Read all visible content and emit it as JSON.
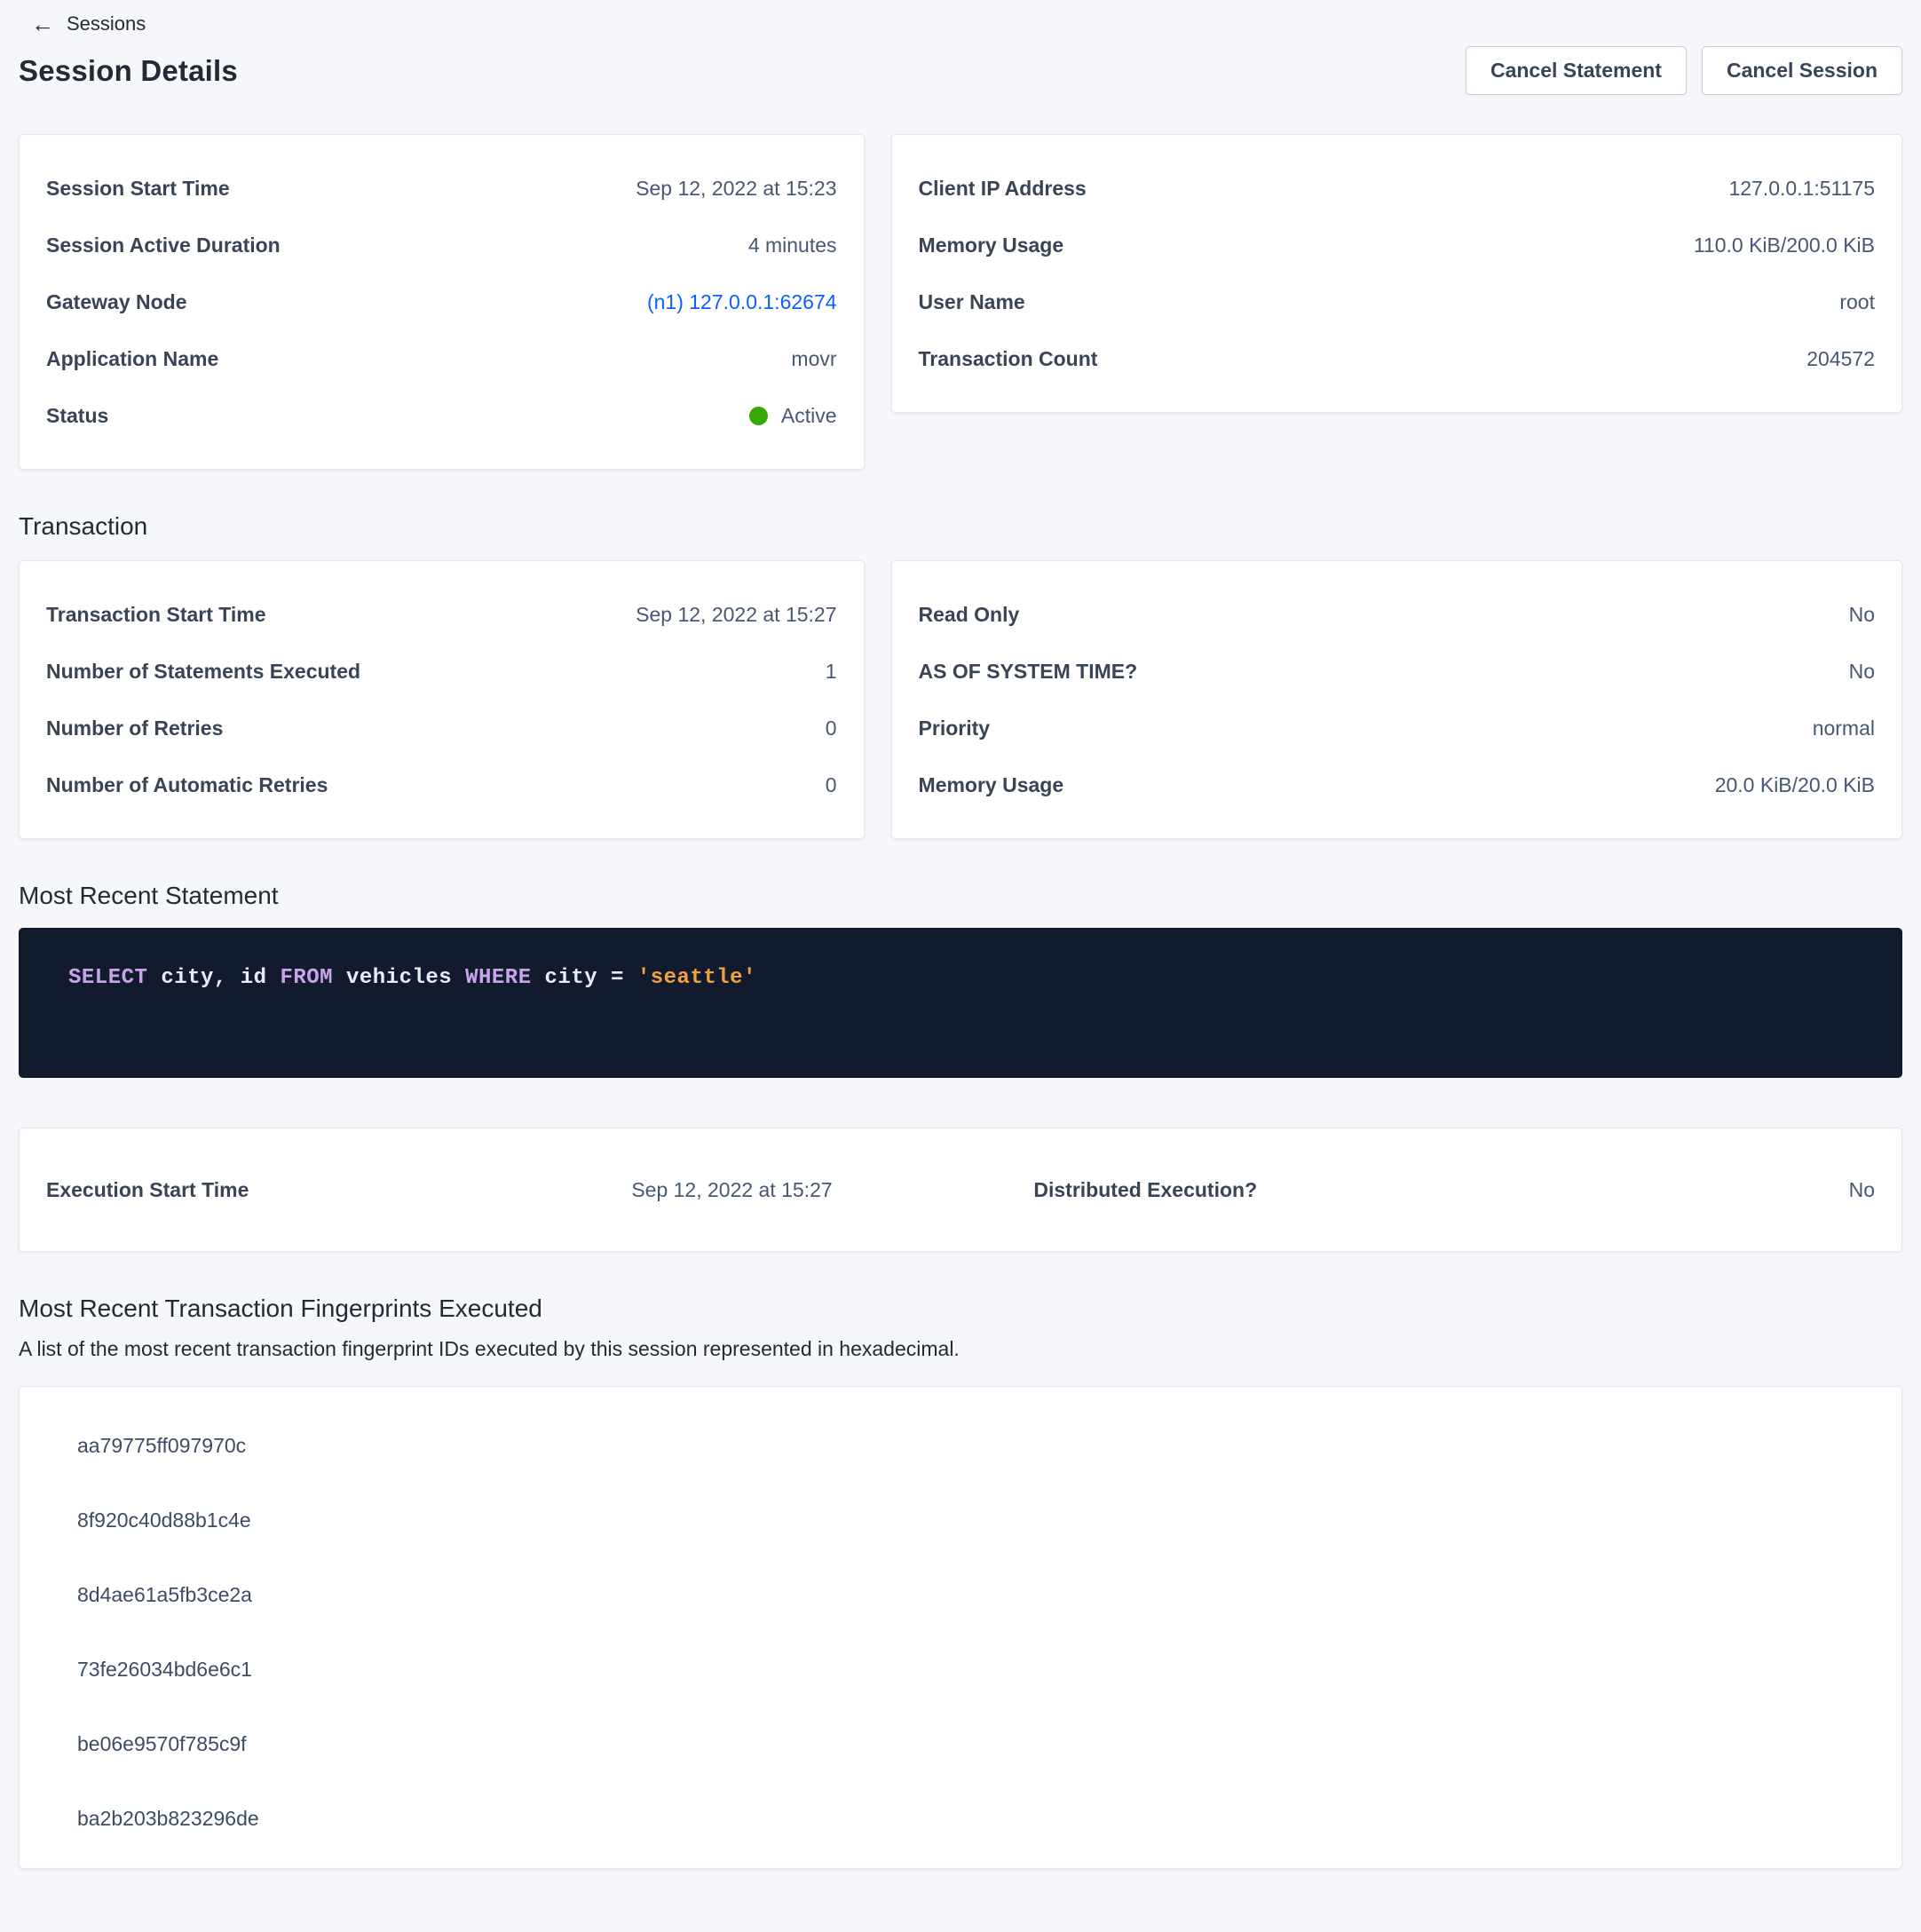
{
  "breadcrumb": {
    "back_label": "Sessions"
  },
  "page": {
    "title": "Session Details"
  },
  "actions": {
    "cancel_statement": "Cancel Statement",
    "cancel_session": "Cancel Session"
  },
  "summary_left": {
    "rows": [
      {
        "label": "Session Start Time",
        "value": "Sep 12, 2022 at 15:23"
      },
      {
        "label": "Session Active Duration",
        "value": "4 minutes"
      },
      {
        "label": "Gateway Node",
        "value": "(n1) 127.0.0.1:62674"
      },
      {
        "label": "Application Name",
        "value": "movr"
      },
      {
        "label": "Status",
        "value": "Active"
      }
    ]
  },
  "summary_right": {
    "rows": [
      {
        "label": "Client IP Address",
        "value": "127.0.0.1:51175"
      },
      {
        "label": "Memory Usage",
        "value": "110.0 KiB/200.0 KiB"
      },
      {
        "label": "User Name",
        "value": "root"
      },
      {
        "label": "Transaction Count",
        "value": "204572"
      }
    ]
  },
  "transaction": {
    "heading": "Transaction",
    "left_rows": [
      {
        "label": "Transaction Start Time",
        "value": "Sep 12, 2022 at 15:27"
      },
      {
        "label": "Number of Statements Executed",
        "value": "1"
      },
      {
        "label": "Number of Retries",
        "value": "0"
      },
      {
        "label": "Number of Automatic Retries",
        "value": "0"
      }
    ],
    "right_rows": [
      {
        "label": "Read Only",
        "value": "No"
      },
      {
        "label": "AS OF SYSTEM TIME?",
        "value": "No"
      },
      {
        "label": "Priority",
        "value": "normal"
      },
      {
        "label": "Memory Usage",
        "value": "20.0 KiB/20.0 KiB"
      }
    ]
  },
  "statement": {
    "heading": "Most Recent Statement",
    "sql_text": "SELECT city, id FROM vehicles WHERE city = 'seattle'",
    "tokens": [
      {
        "text": "SELECT",
        "type": "keyword"
      },
      {
        "text": " city, id ",
        "type": "plain"
      },
      {
        "text": "FROM",
        "type": "keyword"
      },
      {
        "text": " vehicles ",
        "type": "plain"
      },
      {
        "text": "WHERE",
        "type": "keyword"
      },
      {
        "text": " city = ",
        "type": "plain"
      },
      {
        "text": "'seattle'",
        "type": "string"
      }
    ]
  },
  "execution": {
    "start_label": "Execution Start Time",
    "start_value": "Sep 12, 2022 at 15:27",
    "distributed_label": "Distributed Execution?",
    "distributed_value": "No"
  },
  "fingerprints": {
    "heading": "Most Recent Transaction Fingerprints Executed",
    "description": "A list of the most recent transaction fingerprint IDs executed by this session represented in hexadecimal.",
    "ids": [
      "aa79775ff097970c",
      "8f920c40d88b1c4e",
      "8d4ae61a5fb3ce2a",
      "73fe26034bd6e6c1",
      "be06e9570f785c9f",
      "ba2b203b823296de"
    ]
  },
  "colors": {
    "page_background": "#F5F7FA",
    "card_background": "#FFFFFF",
    "link_blue": "#0B5FFF",
    "status_green": "#37A806",
    "sql_background": "#121A2D",
    "sql_keyword": "#C9A3EA",
    "sql_plain": "#E7ECF3",
    "sql_string": "#F0A23C"
  }
}
